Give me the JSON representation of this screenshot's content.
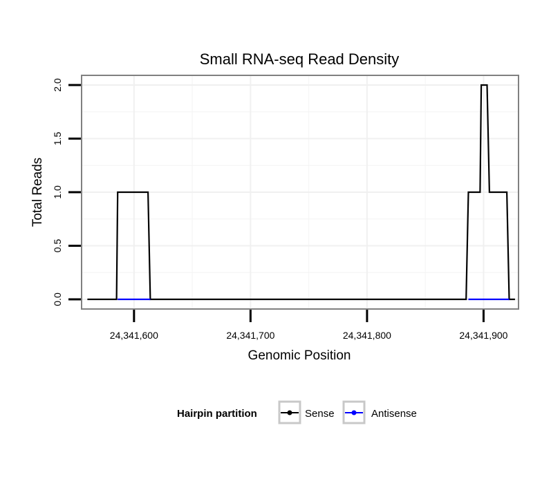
{
  "chart_data": {
    "type": "line",
    "title": "Small RNA-seq Read Density",
    "xlabel": "Genomic Position",
    "ylabel": "Total Reads",
    "xlim": [
      24341555,
      24341930
    ],
    "ylim": [
      -0.09,
      2.09
    ],
    "x_ticks": [
      24341600,
      24341700,
      24341800,
      24341900
    ],
    "x_tick_labels": [
      "24,341,600",
      "24,341,700",
      "24,341,800",
      "24,341,900"
    ],
    "y_ticks": [
      0,
      0.5,
      1,
      1.5,
      2
    ],
    "y_tick_labels": [
      "0.0",
      "0.5",
      "1.0",
      "1.5",
      "2.0"
    ],
    "grid": true,
    "legend": {
      "title": "Hairpin partition",
      "position": "bottom",
      "entries": [
        "Sense",
        "Antisense"
      ]
    },
    "series": [
      {
        "name": "Sense",
        "color": "#000000",
        "x": [
          24341560,
          24341585,
          24341586,
          24341612,
          24341614,
          24341885,
          24341887,
          24341897,
          24341898,
          24341903,
          24341905,
          24341909,
          24341911,
          24341920,
          24341922,
          24341927
        ],
        "y": [
          0,
          0,
          1,
          1,
          0,
          0,
          1,
          1,
          2,
          2,
          1,
          1,
          1,
          1,
          0,
          0
        ]
      },
      {
        "name": "Antisense",
        "color": "#0000ff",
        "segments": [
          {
            "x": [
              24341586,
              24341614
            ],
            "y": [
              0,
              0
            ]
          },
          {
            "x": [
              24341887,
              24341922
            ],
            "y": [
              0,
              0
            ]
          }
        ]
      }
    ]
  }
}
